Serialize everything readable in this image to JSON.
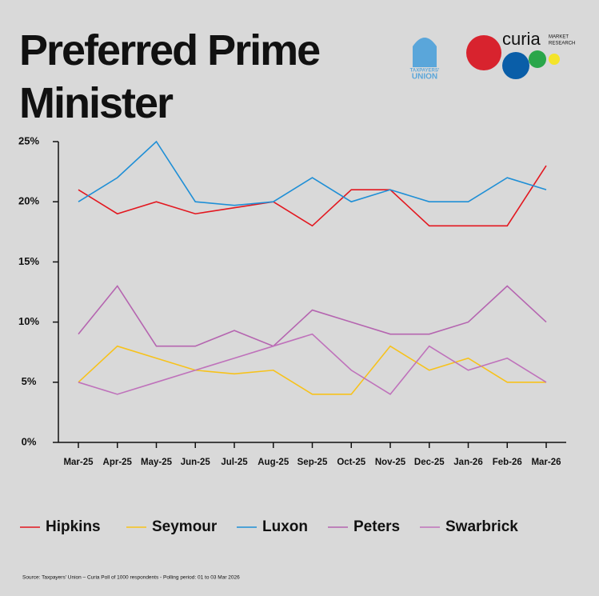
{
  "chart_data": {
    "type": "line",
    "title": "Preferred Prime Minister",
    "categories": [
      "Mar-25",
      "Apr-25",
      "May-25",
      "Jun-25",
      "Jul-25",
      "Aug-25",
      "Sep-25",
      "Oct-25",
      "Nov-25",
      "Dec-25",
      "Jan-26",
      "Feb-26",
      "Mar-26"
    ],
    "series": [
      {
        "name": "Hipkins",
        "color": "#e3171f",
        "values": [
          21,
          19,
          20,
          19,
          19.5,
          20,
          18,
          21,
          21,
          18,
          18,
          18,
          23
        ]
      },
      {
        "name": "Seymour",
        "color": "#f7c21b",
        "values": [
          5,
          8,
          7,
          6,
          5.7,
          6,
          4,
          4,
          8,
          6,
          7,
          5,
          5
        ]
      },
      {
        "name": "Luxon",
        "color": "#1f8fd6",
        "values": [
          20,
          22,
          25,
          20,
          19.7,
          20,
          22,
          20,
          21,
          20,
          20,
          22,
          21
        ]
      },
      {
        "name": "Peters",
        "color": "#b565b0",
        "values": [
          9,
          13,
          8,
          8,
          9.3,
          8,
          11,
          10,
          9,
          9,
          10,
          13,
          10
        ]
      },
      {
        "name": "Swarbrick",
        "color": "#bf72bb",
        "values": [
          5,
          4,
          5,
          6,
          7,
          8,
          9,
          6,
          4,
          8,
          6,
          7,
          5
        ]
      }
    ],
    "ylim": [
      0,
      25
    ],
    "yticks": [
      {
        "value": 0,
        "label": "0%"
      },
      {
        "value": 5,
        "label": "5%"
      },
      {
        "value": 10,
        "label": "10%"
      },
      {
        "value": 15,
        "label": "15%"
      },
      {
        "value": 20,
        "label": "20%"
      },
      {
        "value": 25,
        "label": "25%"
      }
    ],
    "grid": false,
    "source": "Source: Taxpayers' Union – Curia Poll of 1000 respondents - Polling period: 01 to 03 Mar 2026"
  },
  "logos": {
    "taxpayers_top": "TAXPAYERS'",
    "taxpayers_bottom": "UNION",
    "curia": "curia",
    "curia_sub1": "MARKET",
    "curia_sub2": "RESEARCH"
  }
}
